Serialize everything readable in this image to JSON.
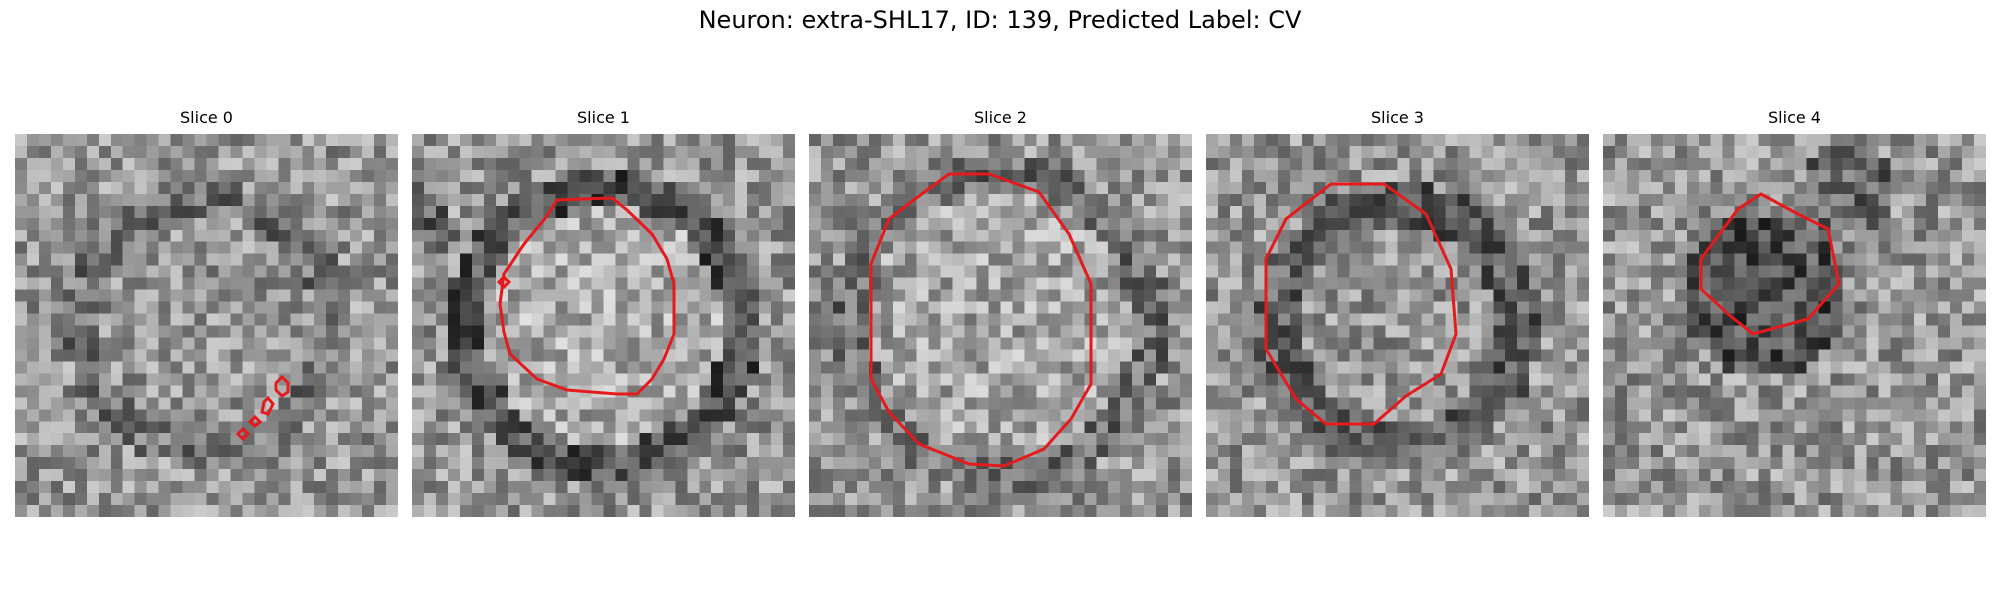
{
  "figure": {
    "title": "Neuron: extra-SHL17, ID: 139, Predicted Label: CV",
    "contour_color": "#e41a1c"
  },
  "panels": [
    {
      "title": "Slice 0",
      "pattern": "ring-faint"
    },
    {
      "title": "Slice 1",
      "pattern": "ring-dark"
    },
    {
      "title": "Slice 2",
      "pattern": "ring-medium"
    },
    {
      "title": "Slice 3",
      "pattern": "ring-dark-small"
    },
    {
      "title": "Slice 4",
      "pattern": "dark-blob"
    }
  ]
}
